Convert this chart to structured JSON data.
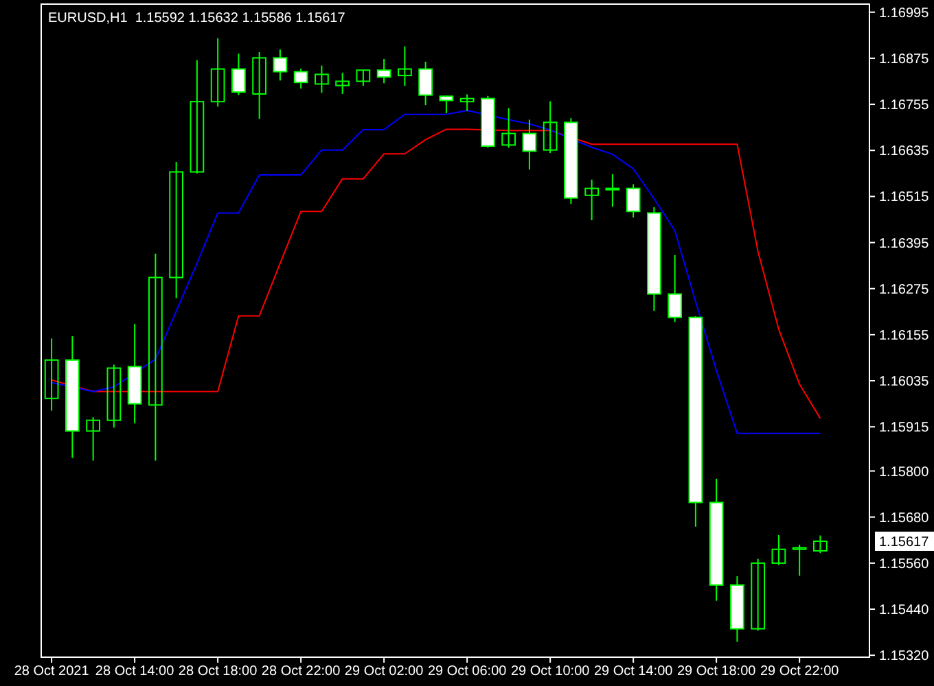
{
  "chart_data": {
    "type": "candlestick",
    "title": "EURUSD,H1  1.15592 1.15632 1.15586 1.15617",
    "color": "#00ff00",
    "x": [
      "2021-10-28T10:00",
      "2021-10-28T11:00",
      "2021-10-28T12:00",
      "2021-10-28T13:00",
      "2021-10-28T14:00",
      "2021-10-28T15:00",
      "2021-10-28T16:00",
      "2021-10-28T17:00",
      "2021-10-28T18:00",
      "2021-10-28T19:00",
      "2021-10-28T20:00",
      "2021-10-28T21:00",
      "2021-10-28T22:00",
      "2021-10-28T23:00",
      "2021-10-29T00:00",
      "2021-10-29T01:00",
      "2021-10-29T02:00",
      "2021-10-29T03:00",
      "2021-10-29T04:00",
      "2021-10-29T05:00",
      "2021-10-29T06:00",
      "2021-10-29T07:00",
      "2021-10-29T08:00",
      "2021-10-29T09:00",
      "2021-10-29T10:00",
      "2021-10-29T11:00",
      "2021-10-29T12:00",
      "2021-10-29T13:00",
      "2021-10-29T14:00",
      "2021-10-29T15:00",
      "2021-10-29T16:00",
      "2021-10-29T17:00",
      "2021-10-29T18:00",
      "2021-10-29T19:00",
      "2021-10-29T20:00",
      "2021-10-29T21:00",
      "2021-10-29T22:00",
      "2021-10-29T23:00"
    ],
    "ohlc": [
      [
        1.15989,
        1.16145,
        1.15957,
        1.16089
      ],
      [
        1.16089,
        1.16151,
        1.15834,
        1.15904
      ],
      [
        1.15904,
        1.1594,
        1.15827,
        1.15932
      ],
      [
        1.15932,
        1.16077,
        1.15913,
        1.16068
      ],
      [
        1.16072,
        1.16183,
        1.15924,
        1.15975
      ],
      [
        1.15972,
        1.16366,
        1.15827,
        1.16304
      ],
      [
        1.16304,
        1.16605,
        1.1625,
        1.16579
      ],
      [
        1.16579,
        1.1687,
        1.16575,
        1.16762
      ],
      [
        1.16762,
        1.16927,
        1.16749,
        1.16847
      ],
      [
        1.16847,
        1.16887,
        1.16779,
        1.16787
      ],
      [
        1.16782,
        1.16891,
        1.16717,
        1.16876
      ],
      [
        1.16876,
        1.16898,
        1.16817,
        1.1684
      ],
      [
        1.1684,
        1.16848,
        1.16796,
        1.16812
      ],
      [
        1.16808,
        1.16856,
        1.16785,
        1.16833
      ],
      [
        1.16804,
        1.16837,
        1.16782,
        1.16815
      ],
      [
        1.16815,
        1.16844,
        1.16803,
        1.16844
      ],
      [
        1.16844,
        1.16873,
        1.1681,
        1.16826
      ],
      [
        1.1683,
        1.16906,
        1.16803,
        1.16847
      ],
      [
        1.16847,
        1.16866,
        1.16753,
        1.16779
      ],
      [
        1.16776,
        1.16778,
        1.16732,
        1.16765
      ],
      [
        1.16762,
        1.16781,
        1.16738,
        1.1677
      ],
      [
        1.1677,
        1.16777,
        1.16642,
        1.16646
      ],
      [
        1.16649,
        1.16745,
        1.16642,
        1.16679
      ],
      [
        1.16679,
        1.16715,
        1.16585,
        1.16633
      ],
      [
        1.16636,
        1.16763,
        1.16628,
        1.16708
      ],
      [
        1.16708,
        1.16719,
        1.16496,
        1.16511
      ],
      [
        1.16518,
        1.16559,
        1.16453,
        1.16536
      ],
      [
        1.16536,
        1.16573,
        1.16488,
        1.16536
      ],
      [
        1.16536,
        1.16547,
        1.1646,
        1.16476
      ],
      [
        1.16472,
        1.16487,
        1.16217,
        1.16261
      ],
      [
        1.16261,
        1.16362,
        1.16188,
        1.162
      ],
      [
        1.162,
        1.16203,
        1.15655,
        1.15718
      ],
      [
        1.15718,
        1.1578,
        1.15462,
        1.15503
      ],
      [
        1.15503,
        1.15526,
        1.15355,
        1.15389
      ],
      [
        1.15389,
        1.15571,
        1.15384,
        1.1556
      ],
      [
        1.1556,
        1.15633,
        1.15555,
        1.15596
      ],
      [
        1.15596,
        1.15608,
        1.15527,
        1.156
      ],
      [
        1.15592,
        1.15632,
        1.15586,
        1.15617
      ]
    ],
    "series": [
      {
        "type": "line",
        "color": "#ff0000",
        "values": [
          1.16037,
          null,
          1.16007,
          1.16007,
          null,
          1.16007,
          1.16007,
          1.16007,
          1.16007,
          1.16204,
          1.16204,
          1.16341,
          1.16476,
          1.16476,
          1.16561,
          1.16561,
          1.16626,
          1.16626,
          1.16663,
          1.1669,
          1.1669,
          null,
          1.16687,
          1.16687,
          1.16687,
          null,
          1.16651,
          1.16651,
          1.16651,
          1.16651,
          1.16651,
          1.16651,
          1.16651,
          1.16651,
          1.16372,
          1.16169,
          1.16026,
          1.15937
        ]
      },
      {
        "type": "line",
        "color": "#0000ff",
        "values": [
          1.1603,
          null,
          1.16007,
          1.16019,
          null,
          1.16091,
          1.16216,
          1.16341,
          1.16472,
          1.16472,
          1.16571,
          1.16571,
          1.16571,
          1.16636,
          1.16636,
          1.16689,
          1.16689,
          1.16729,
          1.16729,
          1.16729,
          1.16739,
          null,
          1.16715,
          1.16704,
          1.16688,
          null,
          1.16643,
          1.16625,
          1.16587,
          1.16509,
          1.16426,
          1.16241,
          1.16062,
          1.15898,
          1.15898,
          1.15898,
          1.15898,
          1.15898
        ]
      }
    ],
    "xlim": [
      "2021-10-28T09:30",
      "2021-10-30T01:22"
    ],
    "xticks": [
      {
        "value": "2021-10-28T10:00",
        "label": "28 Oct 2021"
      },
      {
        "value": "2021-10-28T14:00",
        "label": "28 Oct 14:00"
      },
      {
        "value": "2021-10-28T18:00",
        "label": "28 Oct 18:00"
      },
      {
        "value": "2021-10-28T22:00",
        "label": "28 Oct 22:00"
      },
      {
        "value": "2021-10-29T02:00",
        "label": "29 Oct 02:00"
      },
      {
        "value": "2021-10-29T06:00",
        "label": "29 Oct 06:00"
      },
      {
        "value": "2021-10-29T10:00",
        "label": "29 Oct 10:00"
      },
      {
        "value": "2021-10-29T14:00",
        "label": "29 Oct 14:00"
      },
      {
        "value": "2021-10-29T18:00",
        "label": "29 Oct 18:00"
      },
      {
        "value": "2021-10-29T22:00",
        "label": "29 Oct 22:00"
      }
    ],
    "ylim": [
      1.15315,
      1.17016
    ],
    "yticks": [
      1.16995,
      1.16875,
      1.16755,
      1.16635,
      1.16515,
      1.16395,
      1.16275,
      1.16155,
      1.16035,
      1.15915,
      {
        "value": 1.158,
        "label": "1.15800"
      },
      {
        "value": 1.1568,
        "label": "1.15680"
      },
      {
        "value": 1.1556,
        "label": "1.15560"
      },
      {
        "value": 1.1544,
        "label": "1.15440"
      },
      {
        "value": 1.1532,
        "label": "1.15320"
      }
    ],
    "annotations": [
      "1.15617"
    ]
  }
}
